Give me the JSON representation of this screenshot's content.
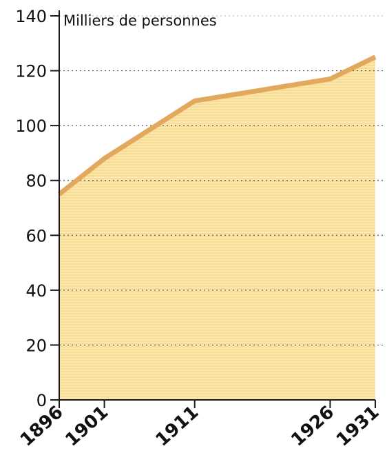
{
  "chart_data": {
    "type": "area",
    "x": [
      1896,
      1901,
      1911,
      1926,
      1931
    ],
    "series": [
      {
        "values": [
          75,
          88,
          109,
          117,
          125
        ]
      }
    ],
    "y_ticks": [
      0,
      20,
      40,
      60,
      80,
      100,
      120,
      140
    ],
    "x_tick_labels": [
      "1896",
      "1901",
      "1911",
      "1926",
      "1931"
    ],
    "ylabel": "Milliers de personnes",
    "ylim": [
      0,
      140
    ],
    "xlim": [
      1896,
      1931
    ],
    "grid": "horizontal dotted",
    "colors": {
      "fill": "#f9e3a1",
      "line": "#e2a85d",
      "axis": "#1a1a1a",
      "grid": "#555555"
    }
  }
}
